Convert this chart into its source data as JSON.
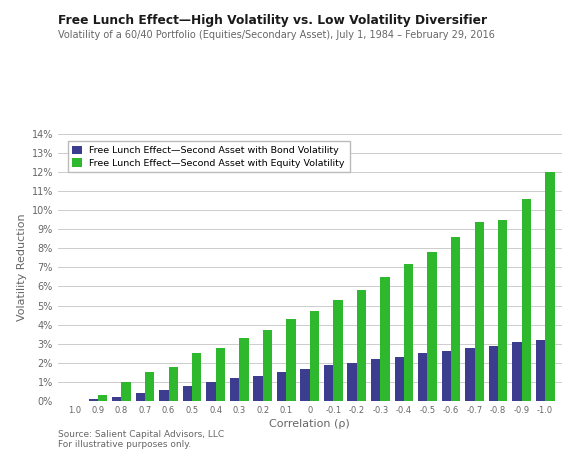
{
  "title": "Free Lunch Effect—High Volatility vs. Low Volatility Diversifier",
  "subtitle": "Volatility of a 60/40 Portfolio (Equities/Secondary Asset), July 1, 1984 – February 29, 2016",
  "xlabel": "Correlation (ρ)",
  "ylabel": "Volatility Reduction",
  "source": "Source: Salient Capital Advisors, LLC\nFor illustrative purposes only.",
  "legend_bond": "Free Lunch Effect—Second Asset with Bond Volatility",
  "legend_equity": "Free Lunch Effect—Second Asset with Equity Volatility",
  "correlations": [
    1.0,
    0.9,
    0.8,
    0.7,
    0.6,
    0.5,
    0.4,
    0.3,
    0.2,
    0.1,
    0.0,
    -0.1,
    -0.2,
    -0.3,
    -0.4,
    -0.5,
    -0.6,
    -0.7,
    -0.8,
    -0.9,
    -1.0
  ],
  "bond_values": [
    0.0,
    0.001,
    0.002,
    0.004,
    0.006,
    0.008,
    0.01,
    0.012,
    0.013,
    0.015,
    0.017,
    0.019,
    0.02,
    0.022,
    0.023,
    0.025,
    0.026,
    0.028,
    0.029,
    0.031,
    0.032
  ],
  "equity_values": [
    0.0,
    0.003,
    0.01,
    0.015,
    0.018,
    0.025,
    0.028,
    0.033,
    0.037,
    0.043,
    0.047,
    0.053,
    0.058,
    0.065,
    0.072,
    0.078,
    0.086,
    0.094,
    0.095,
    0.106,
    0.12
  ],
  "bar_color_bond": "#3d3d8f",
  "bar_color_equity": "#2db82d",
  "ylim": [
    0,
    0.14
  ],
  "ytick_labels": [
    "0%",
    "1%",
    "2%",
    "3%",
    "4%",
    "5%",
    "6%",
    "7%",
    "8%",
    "9%",
    "10%",
    "11%",
    "12%",
    "13%",
    "14%"
  ],
  "ytick_values": [
    0.0,
    0.01,
    0.02,
    0.03,
    0.04,
    0.05,
    0.06,
    0.07,
    0.08,
    0.09,
    0.1,
    0.11,
    0.12,
    0.13,
    0.14
  ],
  "xtick_labels": [
    "1.0",
    "0.9",
    "0.8",
    "0.7",
    "0.6",
    "0.5",
    "0.4",
    "0.3",
    "0.2",
    "0.1",
    "0",
    "-0.1",
    "-0.2",
    "-0.3",
    "-0.4",
    "-0.5",
    "-0.6",
    "-0.7",
    "-0.8",
    "-0.9",
    "-1.0"
  ],
  "background_color": "#ffffff",
  "grid_color": "#cccccc",
  "title_color": "#1a1a1a",
  "subtitle_color": "#666666",
  "axis_label_color": "#666666",
  "tick_label_color": "#666666",
  "source_color": "#666666"
}
